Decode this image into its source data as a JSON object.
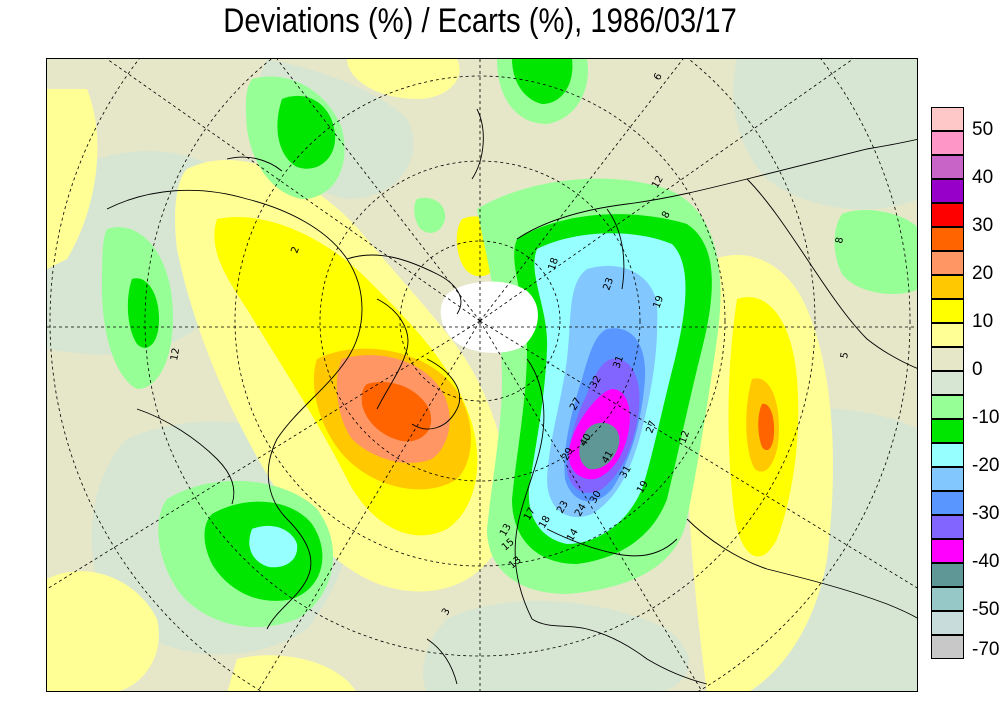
{
  "title": "Deviations (%) / Ecarts (%), 1986/03/17",
  "legend": {
    "swatches": [
      {
        "color": "#ffc8c8"
      },
      {
        "color": "#ff96c8"
      },
      {
        "color": "#c864c8"
      },
      {
        "color": "#9600c8"
      },
      {
        "color": "#ff0000"
      },
      {
        "color": "#ff6400"
      },
      {
        "color": "#ff9664"
      },
      {
        "color": "#ffc800"
      },
      {
        "color": "#ffff00"
      },
      {
        "color": "#ffff96"
      },
      {
        "color": "#e6e6c8"
      },
      {
        "color": "#d7e6d2"
      },
      {
        "color": "#96ff96"
      },
      {
        "color": "#00e600"
      },
      {
        "color": "#96ffff"
      },
      {
        "color": "#82c8ff"
      },
      {
        "color": "#5a96ff"
      },
      {
        "color": "#8264ff"
      },
      {
        "color": "#ff00ff"
      },
      {
        "color": "#5f9696"
      },
      {
        "color": "#96c8c8"
      },
      {
        "color": "#c8dcdc"
      },
      {
        "color": "#c8c8c8"
      }
    ],
    "tick_labels": [
      "50",
      "40",
      "30",
      "20",
      "10",
      "0",
      "-10",
      "-20",
      "-30",
      "-40",
      "-50",
      "-70"
    ]
  },
  "contour_labels": [
    "18",
    "23",
    "19",
    "31",
    "32",
    "27",
    "29",
    "40",
    "41",
    "31",
    "30",
    "24",
    "23",
    "18",
    "17",
    "13",
    "14",
    "19",
    "27",
    "12",
    "13",
    "15",
    "12",
    "8",
    "5",
    "2",
    "12",
    "3",
    "8",
    "6"
  ]
}
